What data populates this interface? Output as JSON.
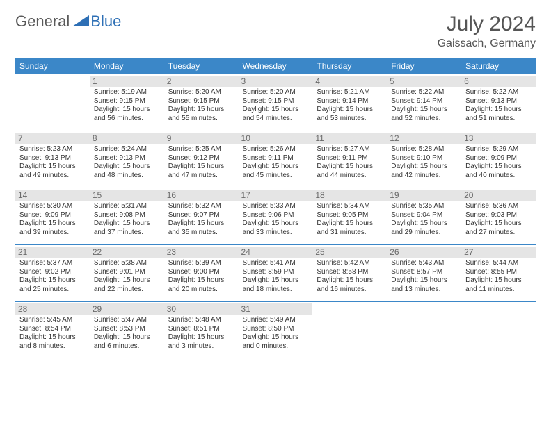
{
  "logo": {
    "general": "General",
    "blue": "Blue"
  },
  "title": "July 2024",
  "location": "Gaissach, Germany",
  "colors": {
    "header_bg": "#3b87c8",
    "header_fg": "#ffffff",
    "daybar_bg": "#e5e5e5",
    "border": "#3b87c8",
    "text": "#333333",
    "logo_gray": "#5a5a5a",
    "logo_blue": "#2d6fb5"
  },
  "weekdays": [
    "Sunday",
    "Monday",
    "Tuesday",
    "Wednesday",
    "Thursday",
    "Friday",
    "Saturday"
  ],
  "weeks": [
    [
      null,
      {
        "n": "1",
        "sr": "5:19 AM",
        "ss": "9:15 PM",
        "dl": "15 hours and 56 minutes."
      },
      {
        "n": "2",
        "sr": "5:20 AM",
        "ss": "9:15 PM",
        "dl": "15 hours and 55 minutes."
      },
      {
        "n": "3",
        "sr": "5:20 AM",
        "ss": "9:15 PM",
        "dl": "15 hours and 54 minutes."
      },
      {
        "n": "4",
        "sr": "5:21 AM",
        "ss": "9:14 PM",
        "dl": "15 hours and 53 minutes."
      },
      {
        "n": "5",
        "sr": "5:22 AM",
        "ss": "9:14 PM",
        "dl": "15 hours and 52 minutes."
      },
      {
        "n": "6",
        "sr": "5:22 AM",
        "ss": "9:13 PM",
        "dl": "15 hours and 51 minutes."
      }
    ],
    [
      {
        "n": "7",
        "sr": "5:23 AM",
        "ss": "9:13 PM",
        "dl": "15 hours and 49 minutes."
      },
      {
        "n": "8",
        "sr": "5:24 AM",
        "ss": "9:13 PM",
        "dl": "15 hours and 48 minutes."
      },
      {
        "n": "9",
        "sr": "5:25 AM",
        "ss": "9:12 PM",
        "dl": "15 hours and 47 minutes."
      },
      {
        "n": "10",
        "sr": "5:26 AM",
        "ss": "9:11 PM",
        "dl": "15 hours and 45 minutes."
      },
      {
        "n": "11",
        "sr": "5:27 AM",
        "ss": "9:11 PM",
        "dl": "15 hours and 44 minutes."
      },
      {
        "n": "12",
        "sr": "5:28 AM",
        "ss": "9:10 PM",
        "dl": "15 hours and 42 minutes."
      },
      {
        "n": "13",
        "sr": "5:29 AM",
        "ss": "9:09 PM",
        "dl": "15 hours and 40 minutes."
      }
    ],
    [
      {
        "n": "14",
        "sr": "5:30 AM",
        "ss": "9:09 PM",
        "dl": "15 hours and 39 minutes."
      },
      {
        "n": "15",
        "sr": "5:31 AM",
        "ss": "9:08 PM",
        "dl": "15 hours and 37 minutes."
      },
      {
        "n": "16",
        "sr": "5:32 AM",
        "ss": "9:07 PM",
        "dl": "15 hours and 35 minutes."
      },
      {
        "n": "17",
        "sr": "5:33 AM",
        "ss": "9:06 PM",
        "dl": "15 hours and 33 minutes."
      },
      {
        "n": "18",
        "sr": "5:34 AM",
        "ss": "9:05 PM",
        "dl": "15 hours and 31 minutes."
      },
      {
        "n": "19",
        "sr": "5:35 AM",
        "ss": "9:04 PM",
        "dl": "15 hours and 29 minutes."
      },
      {
        "n": "20",
        "sr": "5:36 AM",
        "ss": "9:03 PM",
        "dl": "15 hours and 27 minutes."
      }
    ],
    [
      {
        "n": "21",
        "sr": "5:37 AM",
        "ss": "9:02 PM",
        "dl": "15 hours and 25 minutes."
      },
      {
        "n": "22",
        "sr": "5:38 AM",
        "ss": "9:01 PM",
        "dl": "15 hours and 22 minutes."
      },
      {
        "n": "23",
        "sr": "5:39 AM",
        "ss": "9:00 PM",
        "dl": "15 hours and 20 minutes."
      },
      {
        "n": "24",
        "sr": "5:41 AM",
        "ss": "8:59 PM",
        "dl": "15 hours and 18 minutes."
      },
      {
        "n": "25",
        "sr": "5:42 AM",
        "ss": "8:58 PM",
        "dl": "15 hours and 16 minutes."
      },
      {
        "n": "26",
        "sr": "5:43 AM",
        "ss": "8:57 PM",
        "dl": "15 hours and 13 minutes."
      },
      {
        "n": "27",
        "sr": "5:44 AM",
        "ss": "8:55 PM",
        "dl": "15 hours and 11 minutes."
      }
    ],
    [
      {
        "n": "28",
        "sr": "5:45 AM",
        "ss": "8:54 PM",
        "dl": "15 hours and 8 minutes."
      },
      {
        "n": "29",
        "sr": "5:47 AM",
        "ss": "8:53 PM",
        "dl": "15 hours and 6 minutes."
      },
      {
        "n": "30",
        "sr": "5:48 AM",
        "ss": "8:51 PM",
        "dl": "15 hours and 3 minutes."
      },
      {
        "n": "31",
        "sr": "5:49 AM",
        "ss": "8:50 PM",
        "dl": "15 hours and 0 minutes."
      },
      null,
      null,
      null
    ]
  ],
  "labels": {
    "sunrise": "Sunrise:",
    "sunset": "Sunset:",
    "daylight": "Daylight:"
  }
}
